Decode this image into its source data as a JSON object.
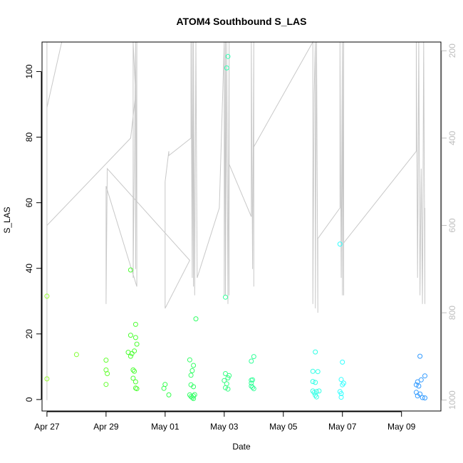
{
  "chart_data": {
    "type": "scatter",
    "title": "ATOM4 Southbound S_LAS",
    "xlabel": "Date",
    "ylabel": "S_LAS",
    "xlim": [
      "2024-04-26T20:00",
      "2024-05-10T08:00"
    ],
    "ylim": [
      -3.5,
      109
    ],
    "x_ticks": [
      {
        "date": "2024-04-27",
        "label": "Apr 27"
      },
      {
        "date": "2024-04-29",
        "label": "Apr 29"
      },
      {
        "date": "2024-05-01",
        "label": "May 01"
      },
      {
        "date": "2024-05-03",
        "label": "May 03"
      },
      {
        "date": "2024-05-05",
        "label": "May 05"
      },
      {
        "date": "2024-05-07",
        "label": "May 07"
      },
      {
        "date": "2024-05-09",
        "label": "May 09"
      }
    ],
    "y_ticks": [
      0,
      20,
      40,
      60,
      80,
      100
    ],
    "right_axis": {
      "ylim": [
        1025,
        180
      ],
      "ticks": [
        200,
        400,
        600,
        800,
        1000
      ],
      "color": "#bdbdbd"
    },
    "grid": false,
    "series": [
      {
        "color_scale": "date (yellow-green to blue)",
        "marker": "open circle",
        "points": [
          {
            "x": "2024-04-27T00:00",
            "y": 31.5,
            "color": "#99ff33"
          },
          {
            "x": "2024-04-27T00:00",
            "y": 6.3,
            "color": "#99ff33"
          },
          {
            "x": "2024-04-28T00:00",
            "y": 13.7,
            "color": "#80ff33"
          },
          {
            "x": "2024-04-29T00:00",
            "y": 12.0,
            "color": "#66ff33"
          },
          {
            "x": "2024-04-29T00:00",
            "y": 9.0,
            "color": "#66ff33"
          },
          {
            "x": "2024-04-29T01:00",
            "y": 7.9,
            "color": "#66ff33"
          },
          {
            "x": "2024-04-29T00:00",
            "y": 4.6,
            "color": "#66ff33"
          },
          {
            "x": "2024-04-29T20:00",
            "y": 39.5,
            "color": "#4dff33"
          },
          {
            "x": "2024-04-29T20:00",
            "y": 19.6,
            "color": "#4dff33"
          },
          {
            "x": "2024-04-29T18:00",
            "y": 14.4,
            "color": "#4dff33"
          },
          {
            "x": "2024-04-29T21:00",
            "y": 14.0,
            "color": "#4dff33"
          },
          {
            "x": "2024-04-29T20:00",
            "y": 13.2,
            "color": "#4dff33"
          },
          {
            "x": "2024-04-29T23:00",
            "y": 14.8,
            "color": "#4dff33"
          },
          {
            "x": "2024-04-30T00:00",
            "y": 22.9,
            "color": "#4dff33"
          },
          {
            "x": "2024-04-30T00:00",
            "y": 18.9,
            "color": "#4dff33"
          },
          {
            "x": "2024-04-30T01:00",
            "y": 16.9,
            "color": "#4dff33"
          },
          {
            "x": "2024-04-29T22:00",
            "y": 9.0,
            "color": "#4dff33"
          },
          {
            "x": "2024-04-29T23:00",
            "y": 8.6,
            "color": "#4dff33"
          },
          {
            "x": "2024-04-29T22:00",
            "y": 6.5,
            "color": "#4dff33"
          },
          {
            "x": "2024-04-30T00:00",
            "y": 5.4,
            "color": "#4dff33"
          },
          {
            "x": "2024-04-30T00:00",
            "y": 3.5,
            "color": "#4dff33"
          },
          {
            "x": "2024-04-30T01:00",
            "y": 3.3,
            "color": "#4dff33"
          },
          {
            "x": "2024-05-01T00:00",
            "y": 4.6,
            "color": "#33ff4d"
          },
          {
            "x": "2024-04-30T23:00",
            "y": 3.4,
            "color": "#33ff4d"
          },
          {
            "x": "2024-05-01T03:00",
            "y": 1.4,
            "color": "#33ff4d"
          },
          {
            "x": "2024-05-01T20:00",
            "y": 12.1,
            "color": "#33ff66"
          },
          {
            "x": "2024-05-01T23:00",
            "y": 10.4,
            "color": "#33ff66"
          },
          {
            "x": "2024-05-01T22:00",
            "y": 8.8,
            "color": "#33ff66"
          },
          {
            "x": "2024-05-01T21:00",
            "y": 7.4,
            "color": "#33ff66"
          },
          {
            "x": "2024-05-01T21:00",
            "y": 4.5,
            "color": "#33ff66"
          },
          {
            "x": "2024-05-01T23:00",
            "y": 3.9,
            "color": "#33ff66"
          },
          {
            "x": "2024-05-02T01:00",
            "y": 24.6,
            "color": "#33ff66"
          },
          {
            "x": "2024-05-01T20:00",
            "y": 1.4,
            "color": "#33ff66"
          },
          {
            "x": "2024-05-01T21:00",
            "y": 0.9,
            "color": "#33ff66"
          },
          {
            "x": "2024-05-01T22:00",
            "y": 0.6,
            "color": "#33ff66"
          },
          {
            "x": "2024-05-01T23:00",
            "y": 1.1,
            "color": "#33ff66"
          },
          {
            "x": "2024-05-02T00:00",
            "y": 1.5,
            "color": "#33ff66"
          },
          {
            "x": "2024-05-01T23:00",
            "y": 0.3,
            "color": "#33ff66"
          },
          {
            "x": "2024-05-03T03:00",
            "y": 104.6,
            "color": "#33ffb3"
          },
          {
            "x": "2024-05-03T02:00",
            "y": 101.1,
            "color": "#33ffb3"
          },
          {
            "x": "2024-05-03T01:00",
            "y": 31.2,
            "color": "#33ff99"
          },
          {
            "x": "2024-05-03T01:00",
            "y": 7.9,
            "color": "#33ff80"
          },
          {
            "x": "2024-05-03T04:00",
            "y": 7.3,
            "color": "#33ff80"
          },
          {
            "x": "2024-05-03T03:00",
            "y": 6.6,
            "color": "#33ff80"
          },
          {
            "x": "2024-05-03T00:00",
            "y": 5.8,
            "color": "#33ff80"
          },
          {
            "x": "2024-05-03T02:00",
            "y": 4.8,
            "color": "#33ff80"
          },
          {
            "x": "2024-05-03T01:00",
            "y": 3.6,
            "color": "#33ff80"
          },
          {
            "x": "2024-05-03T03:00",
            "y": 3.2,
            "color": "#33ff80"
          },
          {
            "x": "2024-05-03T22:00",
            "y": 11.7,
            "color": "#33ff99"
          },
          {
            "x": "2024-05-04T00:00",
            "y": 13.1,
            "color": "#33ff99"
          },
          {
            "x": "2024-05-03T22:00",
            "y": 5.9,
            "color": "#33ff99"
          },
          {
            "x": "2024-05-03T23:00",
            "y": 6.0,
            "color": "#33ff99"
          },
          {
            "x": "2024-05-03T22:00",
            "y": 5.0,
            "color": "#33ff99"
          },
          {
            "x": "2024-05-03T22:00",
            "y": 4.1,
            "color": "#33ff99"
          },
          {
            "x": "2024-05-03T23:00",
            "y": 3.7,
            "color": "#33ff99"
          },
          {
            "x": "2024-05-04T00:00",
            "y": 3.3,
            "color": "#33ff99"
          },
          {
            "x": "2024-05-06T02:00",
            "y": 14.5,
            "color": "#33ffe6"
          },
          {
            "x": "2024-05-06T00:00",
            "y": 8.6,
            "color": "#33ffe6"
          },
          {
            "x": "2024-05-06T04:00",
            "y": 8.5,
            "color": "#33ffe6"
          },
          {
            "x": "2024-05-06T00:00",
            "y": 5.5,
            "color": "#33ffe6"
          },
          {
            "x": "2024-05-06T02:00",
            "y": 5.2,
            "color": "#33ffe6"
          },
          {
            "x": "2024-05-06T00:00",
            "y": 2.6,
            "color": "#33ffe6"
          },
          {
            "x": "2024-05-06T01:00",
            "y": 2.1,
            "color": "#33ffe6"
          },
          {
            "x": "2024-05-06T03:00",
            "y": 2.4,
            "color": "#33ffe6"
          },
          {
            "x": "2024-05-06T05:00",
            "y": 2.6,
            "color": "#33ffe6"
          },
          {
            "x": "2024-05-06T02:00",
            "y": 1.3,
            "color": "#33ffe6"
          },
          {
            "x": "2024-05-06T03:00",
            "y": 0.8,
            "color": "#33ffe6"
          },
          {
            "x": "2024-05-06T22:00",
            "y": 47.4,
            "color": "#33ffff"
          },
          {
            "x": "2024-05-07T00:00",
            "y": 11.4,
            "color": "#33ffff"
          },
          {
            "x": "2024-05-06T23:00",
            "y": 6.1,
            "color": "#33ffff"
          },
          {
            "x": "2024-05-07T01:00",
            "y": 5.0,
            "color": "#33ffff"
          },
          {
            "x": "2024-05-07T00:00",
            "y": 4.5,
            "color": "#33ffff"
          },
          {
            "x": "2024-05-06T22:00",
            "y": 2.4,
            "color": "#33ffff"
          },
          {
            "x": "2024-05-06T23:00",
            "y": 1.8,
            "color": "#33ffff"
          },
          {
            "x": "2024-05-06T23:00",
            "y": 0.7,
            "color": "#33ffff"
          },
          {
            "x": "2024-05-09T15:00",
            "y": 13.2,
            "color": "#339bff"
          },
          {
            "x": "2024-05-09T19:00",
            "y": 7.2,
            "color": "#339bff"
          },
          {
            "x": "2024-05-09T16:00",
            "y": 6.0,
            "color": "#339bff"
          },
          {
            "x": "2024-05-09T13:00",
            "y": 5.4,
            "color": "#339bff"
          },
          {
            "x": "2024-05-09T12:00",
            "y": 4.5,
            "color": "#339bff"
          },
          {
            "x": "2024-05-09T14:00",
            "y": 4.1,
            "color": "#339bff"
          },
          {
            "x": "2024-05-09T12:00",
            "y": 2.2,
            "color": "#339bff"
          },
          {
            "x": "2024-05-09T15:00",
            "y": 1.7,
            "color": "#339bff"
          },
          {
            "x": "2024-05-09T13:00",
            "y": 1.1,
            "color": "#339bff"
          },
          {
            "x": "2024-05-09T17:00",
            "y": 0.6,
            "color": "#339bff"
          },
          {
            "x": "2024-05-09T19:00",
            "y": 0.5,
            "color": "#339bff"
          }
        ]
      },
      {
        "axis": "right",
        "color": "#c8c8c8",
        "line": [
          [
            "2024-04-27T00:00",
            1000
          ],
          [
            "2024-04-27T00:00",
            330
          ],
          [
            "2024-04-27T12:00",
            180
          ],
          [
            "2024-04-27T00:00",
            180
          ],
          [
            "2024-04-27T00:00",
            600
          ],
          [
            "2024-04-29T20:00",
            400
          ],
          [
            "2024-04-30T00:00",
            300
          ],
          [
            "2024-04-29T22:00",
            180
          ],
          [
            "2024-04-29T22:00",
            720
          ],
          [
            "2024-04-30T00:00",
            180
          ],
          [
            "2024-04-30T00:00",
            700
          ],
          [
            "2024-04-30T01:00",
            180
          ],
          [
            "2024-04-30T01:00",
            740
          ],
          [
            "2024-04-29T00:00",
            510
          ],
          [
            "2024-04-29T00:00",
            780
          ],
          [
            "2024-04-29T01:00",
            470
          ],
          [
            "2024-05-01T20:00",
            680
          ],
          [
            "2024-05-01T00:00",
            790
          ],
          [
            "2024-05-01T00:00",
            500
          ],
          [
            "2024-05-01T03:00",
            430
          ],
          [
            "2024-05-01T03:00",
            440
          ],
          [
            "2024-05-01T21:00",
            400
          ],
          [
            "2024-05-01T21:00",
            180
          ],
          [
            "2024-05-01T22:00",
            720
          ],
          [
            "2024-05-01T22:00",
            180
          ],
          [
            "2024-05-01T23:00",
            740
          ],
          [
            "2024-05-01T23:00",
            180
          ],
          [
            "2024-05-02T00:00",
            760
          ],
          [
            "2024-05-02T01:00",
            180
          ],
          [
            "2024-05-02T02:00",
            720
          ],
          [
            "2024-05-02T20:00",
            560
          ],
          [
            "2024-05-03T00:00",
            180
          ],
          [
            "2024-05-03T00:00",
            760
          ],
          [
            "2024-05-03T01:00",
            180
          ],
          [
            "2024-05-03T01:00",
            760
          ],
          [
            "2024-05-03T02:00",
            180
          ],
          [
            "2024-05-03T03:00",
            780
          ],
          [
            "2024-05-03T04:00",
            180
          ],
          [
            "2024-05-03T04:00",
            760
          ],
          [
            "2024-05-03T04:00",
            460
          ],
          [
            "2024-05-03T22:00",
            580
          ],
          [
            "2024-05-03T22:00",
            180
          ],
          [
            "2024-05-03T23:00",
            700
          ],
          [
            "2024-05-04T00:00",
            180
          ],
          [
            "2024-05-04T00:00",
            740
          ],
          [
            "2024-05-04T00:00",
            420
          ],
          [
            "2024-05-06T00:00",
            180
          ],
          [
            "2024-05-06T00:00",
            780
          ],
          [
            "2024-05-06T01:00",
            300
          ],
          [
            "2024-05-06T02:00",
            180
          ],
          [
            "2024-05-06T02:00",
            790
          ],
          [
            "2024-05-06T03:00",
            180
          ],
          [
            "2024-05-06T04:00",
            800
          ],
          [
            "2024-05-06T04:00",
            630
          ],
          [
            "2024-05-06T22:00",
            560
          ],
          [
            "2024-05-06T22:00",
            180
          ],
          [
            "2024-05-06T23:00",
            720
          ],
          [
            "2024-05-07T00:00",
            180
          ],
          [
            "2024-05-07T00:00",
            760
          ],
          [
            "2024-05-07T01:00",
            180
          ],
          [
            "2024-05-07T01:00",
            760
          ],
          [
            "2024-05-07T01:00",
            640
          ],
          [
            "2024-05-09T12:00",
            430
          ],
          [
            "2024-05-09T12:00",
            180
          ],
          [
            "2024-05-09T13:00",
            720
          ],
          [
            "2024-05-09T14:00",
            180
          ],
          [
            "2024-05-09T15:00",
            760
          ],
          [
            "2024-05-09T16:00",
            470
          ],
          [
            "2024-05-09T17:00",
            780
          ],
          [
            "2024-05-09T18:00",
            180
          ],
          [
            "2024-05-09T19:00",
            780
          ],
          [
            "2024-05-09T19:00",
            560
          ]
        ]
      }
    ]
  }
}
